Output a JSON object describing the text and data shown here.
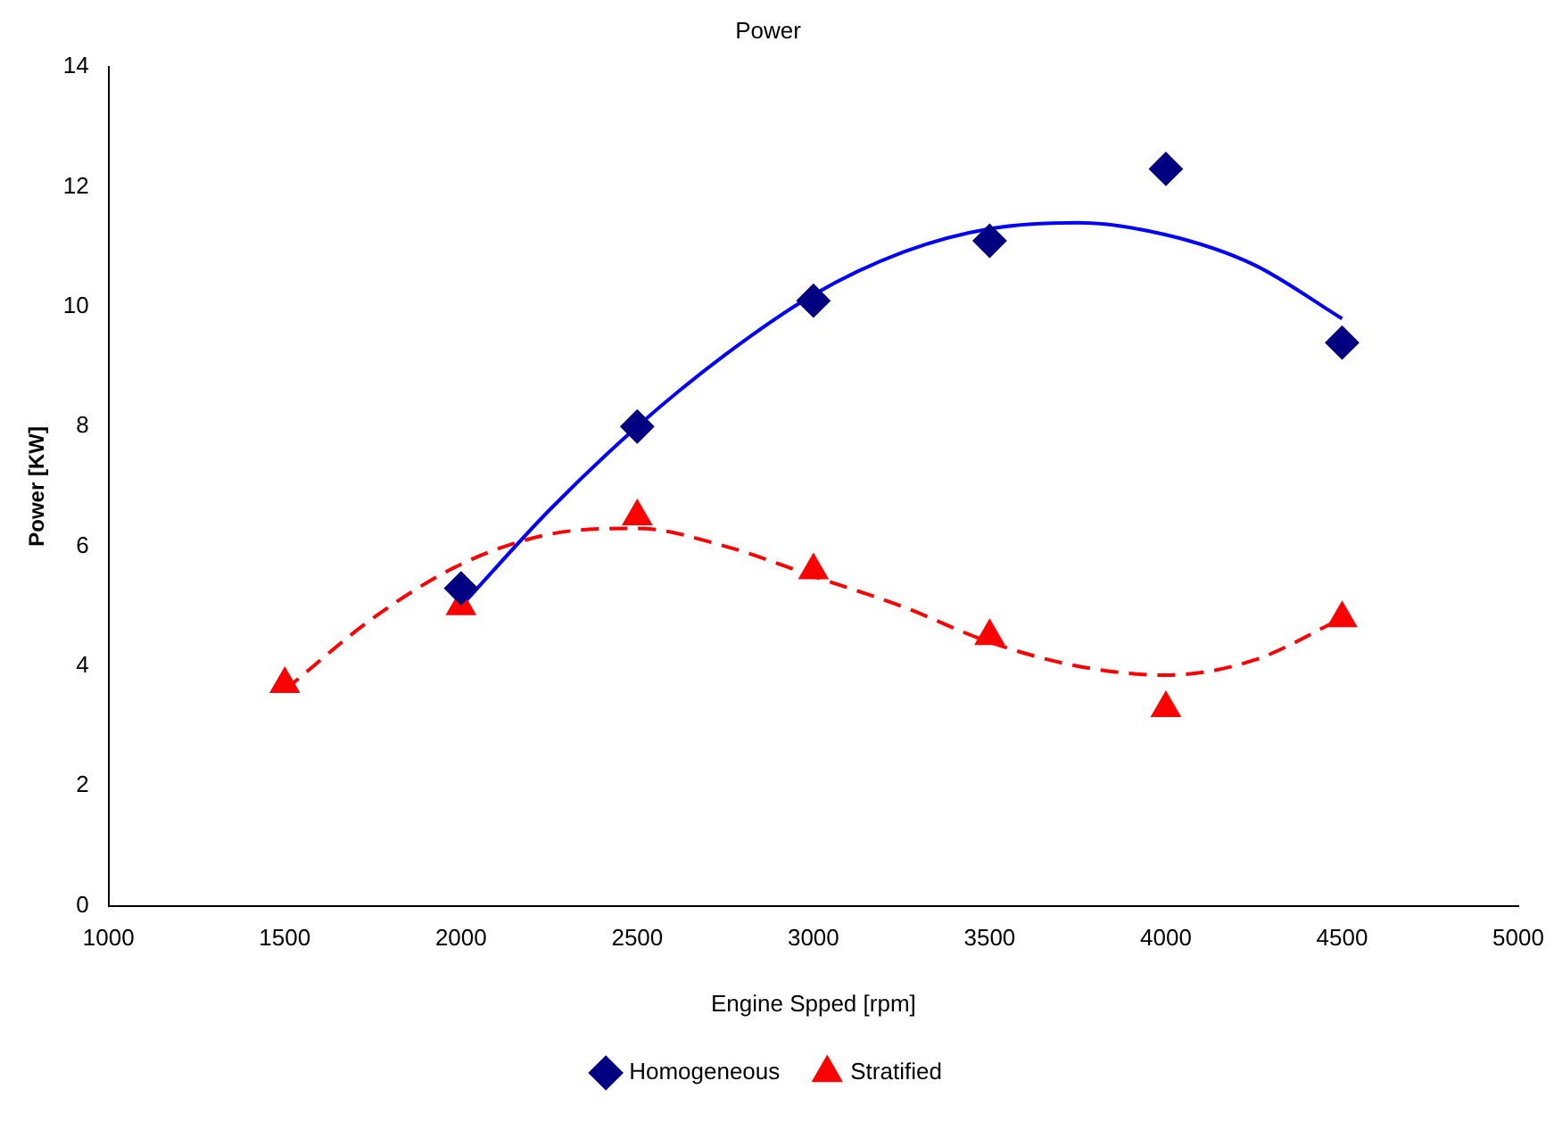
{
  "chart_data": {
    "type": "scatter",
    "title": "Power",
    "xlabel": "Engine Spped [rpm]",
    "ylabel": "Power [KW]",
    "xlim": [
      1000,
      5000
    ],
    "xticks": [
      1000,
      1500,
      2000,
      2500,
      3000,
      3500,
      4000,
      4500,
      5000
    ],
    "ylim": [
      0,
      14
    ],
    "yticks": [
      0,
      2,
      4,
      6,
      8,
      10,
      12,
      14
    ],
    "grid": false,
    "legend": "bottom",
    "series": [
      {
        "name": "Homogeneous",
        "marker": "diamond",
        "color": "#000080",
        "x": [
          2000,
          2500,
          3000,
          3500,
          4000,
          4500
        ],
        "values": [
          5.3,
          8.0,
          10.1,
          11.1,
          12.3,
          9.4
        ]
      },
      {
        "name": "Stratified",
        "marker": "triangle",
        "color": "#ff0000",
        "x": [
          1500,
          2000,
          2500,
          3000,
          3500,
          4000,
          4500
        ],
        "values": [
          3.7,
          5.0,
          6.5,
          5.6,
          4.5,
          3.3,
          4.8
        ]
      },
      {
        "type": "line",
        "marker": "none",
        "line_style": "solid",
        "color": "#0000ff",
        "x": [
          2000,
          2250,
          2500,
          2750,
          3000,
          3250,
          3500,
          3750,
          4000,
          4250,
          4500
        ],
        "values": [
          5.0,
          6.6,
          8.0,
          9.2,
          10.2,
          10.9,
          11.3,
          11.4,
          11.2,
          10.7,
          9.8
        ]
      },
      {
        "type": "line",
        "marker": "none",
        "line_style": "dashed",
        "color": "#ff0000",
        "x": [
          1500,
          1750,
          2000,
          2250,
          2500,
          2750,
          3000,
          3250,
          3500,
          3750,
          4000,
          4250,
          4500
        ],
        "values": [
          3.6,
          4.8,
          5.7,
          6.2,
          6.3,
          6.0,
          5.5,
          5.0,
          4.4,
          4.0,
          3.85,
          4.1,
          4.8
        ]
      }
    ]
  }
}
